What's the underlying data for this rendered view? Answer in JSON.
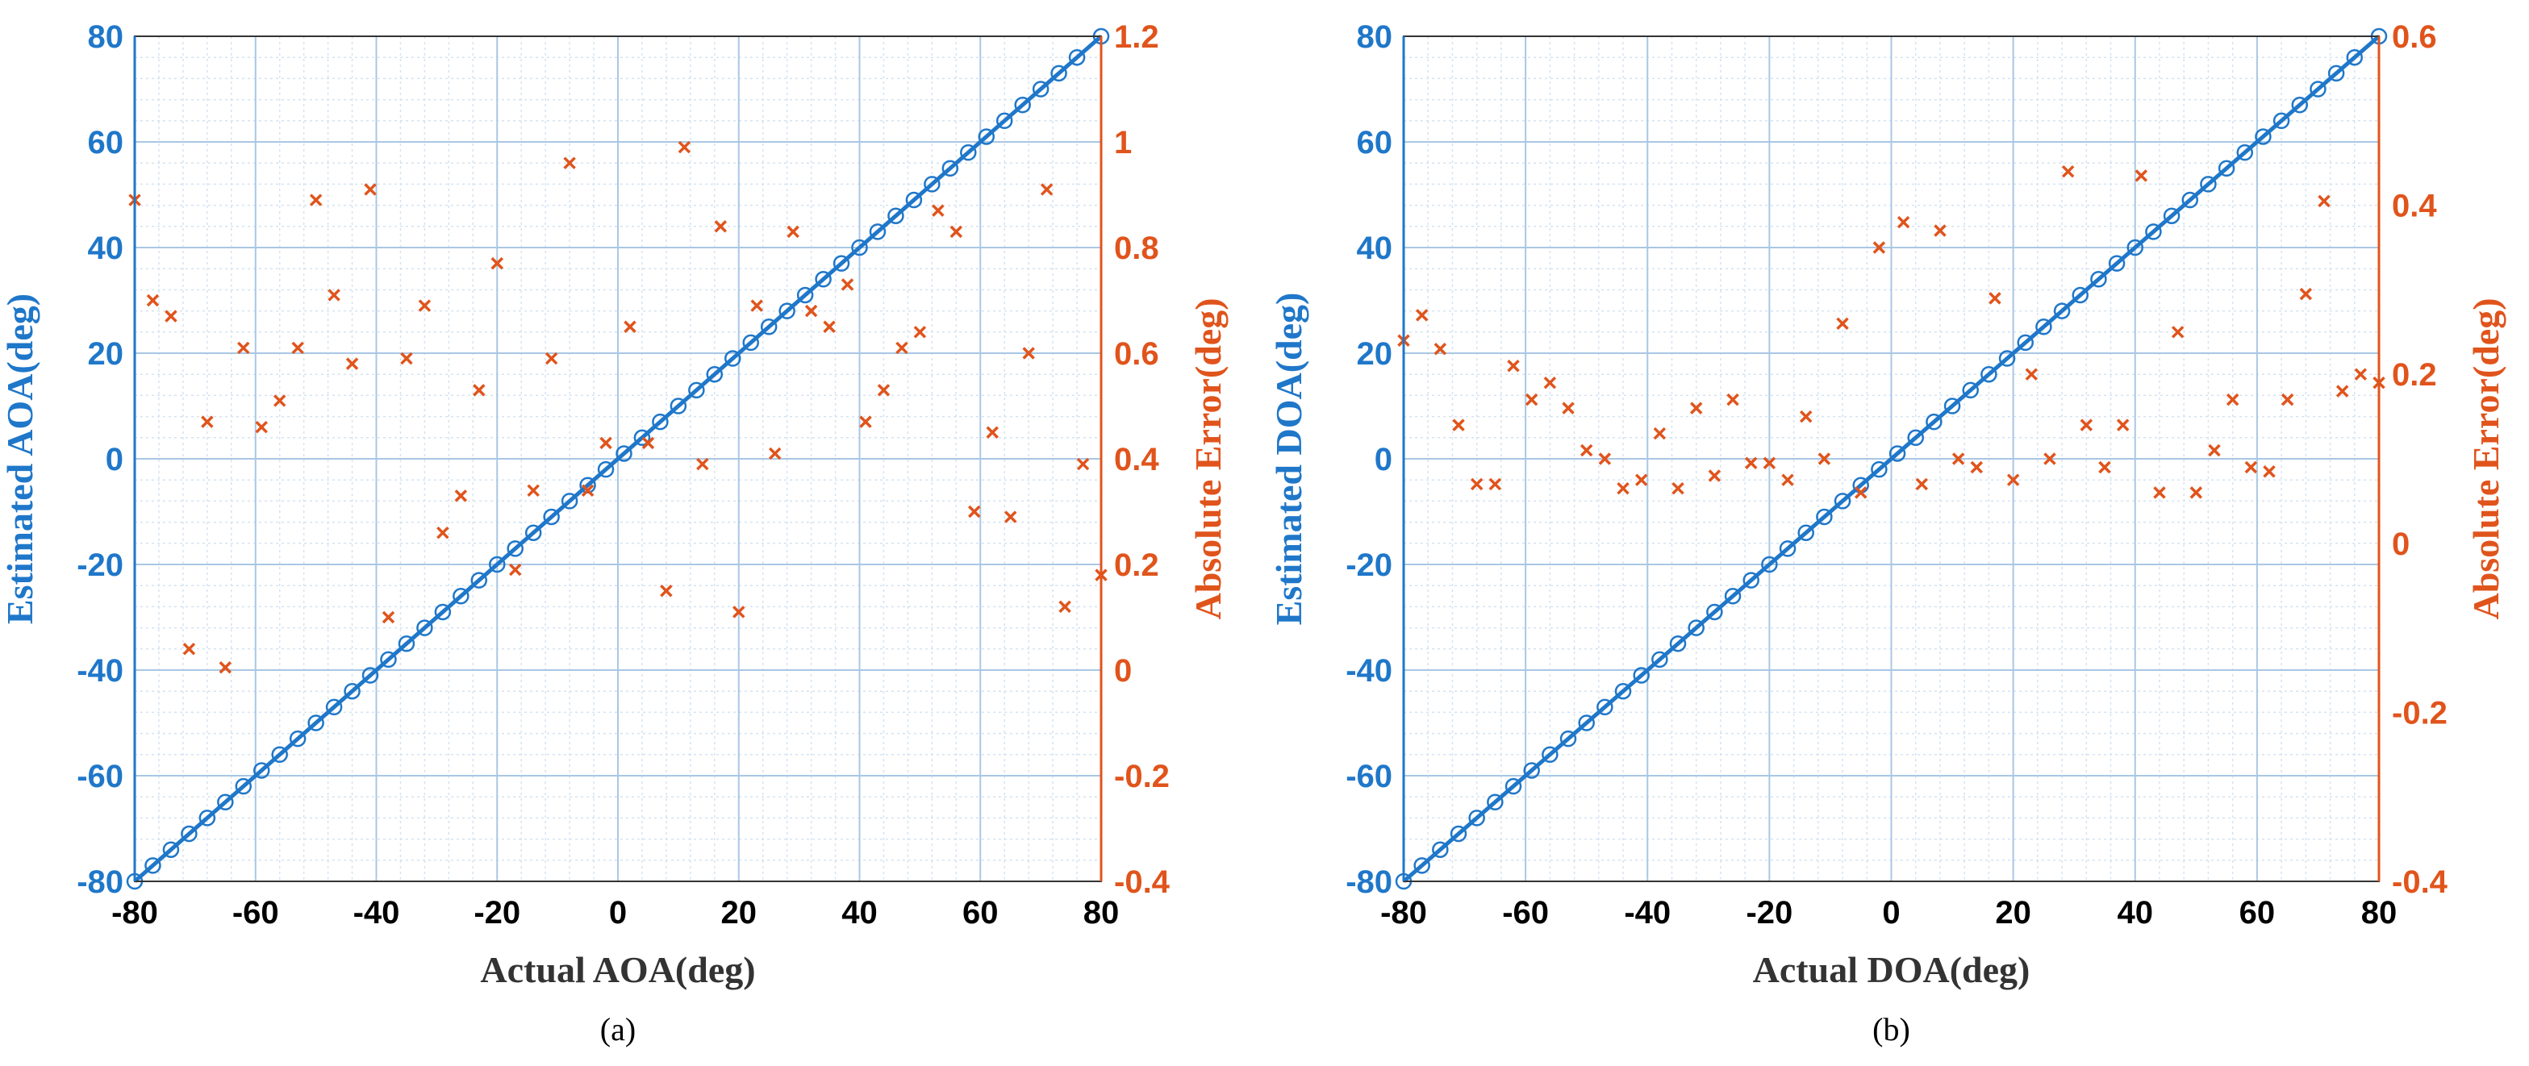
{
  "colors": {
    "left_axis": "#1f77c9",
    "right_axis": "#e0541c",
    "grid_major": "#a9c7e4",
    "grid_minor": "#d4e3f2",
    "axis_box": "#333333"
  },
  "chart_data": [
    {
      "type": "scatter",
      "caption": "(a)",
      "xlabel": "Actual AOA(deg)",
      "ylabel_left": "Estimated AOA(deg)",
      "ylabel_right": "Absolute Error(deg)",
      "xlim": [
        -80,
        80
      ],
      "ylim_left": [
        -80,
        80
      ],
      "ylim_right": [
        -0.4,
        1.2
      ],
      "x_ticks": [
        -80,
        -60,
        -40,
        -20,
        0,
        20,
        40,
        60,
        80
      ],
      "y_left_ticks": [
        -80,
        -60,
        -40,
        -20,
        0,
        20,
        40,
        60,
        80
      ],
      "y_right_ticks": [
        "-0.4",
        "-0.2",
        "0",
        "0.2",
        "0.4",
        "0.6",
        "0.8",
        "1",
        "1.2"
      ],
      "series": [
        {
          "name": "Estimated",
          "axis": "left",
          "marker": "circle",
          "line": "identity",
          "x": [
            -80,
            -77,
            -74,
            -71,
            -68,
            -65,
            -62,
            -59,
            -56,
            -53,
            -50,
            -47,
            -44,
            -41,
            -38,
            -35,
            -32,
            -29,
            -26,
            -23,
            -20,
            -17,
            -14,
            -11,
            -8,
            -5,
            -2,
            1,
            4,
            7,
            10,
            13,
            16,
            19,
            22,
            25,
            28,
            31,
            34,
            37,
            40,
            43,
            46,
            49,
            52,
            55,
            58,
            61,
            64,
            67,
            70,
            73,
            76,
            80
          ],
          "y": [
            -80,
            -77,
            -74,
            -71,
            -68,
            -65,
            -62,
            -59,
            -56,
            -53,
            -50,
            -47,
            -44,
            -41,
            -38,
            -35,
            -32,
            -29,
            -26,
            -23,
            -20,
            -17,
            -14,
            -11,
            -8,
            -5,
            -2,
            1,
            4,
            7,
            10,
            13,
            16,
            19,
            22,
            25,
            28,
            31,
            34,
            37,
            40,
            43,
            46,
            49,
            52,
            55,
            58,
            61,
            64,
            67,
            70,
            73,
            76,
            80
          ]
        },
        {
          "name": "Absolute Error",
          "axis": "right",
          "marker": "x",
          "x": [
            -80,
            -77,
            -74,
            -71,
            -68,
            -65,
            -62,
            -59,
            -56,
            -53,
            -50,
            -47,
            -44,
            -41,
            -38,
            -35,
            -32,
            -29,
            -26,
            -23,
            -20,
            -17,
            -14,
            -11,
            -8,
            -5,
            -2,
            2,
            5,
            8,
            11,
            14,
            17,
            20,
            23,
            26,
            29,
            32,
            35,
            38,
            41,
            44,
            47,
            50,
            53,
            56,
            59,
            62,
            65,
            68,
            71,
            74,
            77,
            80
          ],
          "y": [
            0.89,
            0.7,
            0.67,
            0.04,
            0.47,
            0.005,
            0.61,
            0.46,
            0.51,
            0.61,
            0.89,
            0.71,
            0.58,
            0.91,
            0.1,
            0.59,
            0.69,
            0.26,
            0.33,
            0.53,
            0.77,
            0.19,
            0.34,
            0.59,
            0.96,
            0.34,
            0.43,
            0.65,
            0.43,
            0.15,
            0.99,
            0.39,
            0.84,
            0.11,
            0.69,
            0.41,
            0.83,
            0.68,
            0.65,
            0.73,
            0.47,
            0.53,
            0.61,
            0.64,
            0.87,
            0.83,
            0.3,
            0.45,
            0.29,
            0.6,
            0.91,
            0.12,
            0.39,
            0.18
          ]
        }
      ]
    },
    {
      "type": "scatter",
      "caption": "(b)",
      "xlabel": "Actual DOA(deg)",
      "ylabel_left": "Estimated DOA(deg)",
      "ylabel_right": "Absolute Error(deg)",
      "xlim": [
        -80,
        80
      ],
      "ylim_left": [
        -80,
        80
      ],
      "ylim_right": [
        -0.4,
        0.6
      ],
      "x_ticks": [
        -80,
        -60,
        -40,
        -20,
        0,
        20,
        40,
        60,
        80
      ],
      "y_left_ticks": [
        -80,
        -60,
        -40,
        -20,
        0,
        20,
        40,
        60,
        80
      ],
      "y_right_ticks": [
        "-0.4",
        "-0.2",
        "0",
        "0.2",
        "0.4",
        "0.6"
      ],
      "series": [
        {
          "name": "Estimated",
          "axis": "left",
          "marker": "circle",
          "line": "identity",
          "x": [
            -80,
            -77,
            -74,
            -71,
            -68,
            -65,
            -62,
            -59,
            -56,
            -53,
            -50,
            -47,
            -44,
            -41,
            -38,
            -35,
            -32,
            -29,
            -26,
            -23,
            -20,
            -17,
            -14,
            -11,
            -8,
            -5,
            -2,
            1,
            4,
            7,
            10,
            13,
            16,
            19,
            22,
            25,
            28,
            31,
            34,
            37,
            40,
            43,
            46,
            49,
            52,
            55,
            58,
            61,
            64,
            67,
            70,
            73,
            76,
            80
          ],
          "y": [
            -80,
            -77,
            -74,
            -71,
            -68,
            -65,
            -62,
            -59,
            -56,
            -53,
            -50,
            -47,
            -44,
            -41,
            -38,
            -35,
            -32,
            -29,
            -26,
            -23,
            -20,
            -17,
            -14,
            -11,
            -8,
            -5,
            -2,
            1,
            4,
            7,
            10,
            13,
            16,
            19,
            22,
            25,
            28,
            31,
            34,
            37,
            40,
            43,
            46,
            49,
            52,
            55,
            58,
            61,
            64,
            67,
            70,
            73,
            76,
            80
          ]
        },
        {
          "name": "Absolute Error",
          "axis": "right",
          "marker": "x",
          "x": [
            -80,
            -77,
            -74,
            -71,
            -68,
            -65,
            -62,
            -59,
            -56,
            -53,
            -50,
            -47,
            -44,
            -41,
            -38,
            -35,
            -32,
            -29,
            -26,
            -23,
            -20,
            -17,
            -14,
            -11,
            -8,
            -5,
            -2,
            2,
            5,
            8,
            11,
            14,
            17,
            20,
            23,
            26,
            29,
            32,
            35,
            38,
            41,
            44,
            47,
            50,
            53,
            56,
            59,
            62,
            65,
            68,
            71,
            74,
            77,
            80
          ],
          "y": [
            0.24,
            0.27,
            0.23,
            0.14,
            0.07,
            0.07,
            0.21,
            0.17,
            0.19,
            0.16,
            0.11,
            0.1,
            0.065,
            0.075,
            0.13,
            0.065,
            0.16,
            0.08,
            0.17,
            0.095,
            0.095,
            0.075,
            0.15,
            0.1,
            0.26,
            0.06,
            0.35,
            0.38,
            0.07,
            0.37,
            0.1,
            0.09,
            0.29,
            0.075,
            0.2,
            0.1,
            0.44,
            0.14,
            0.09,
            0.14,
            0.435,
            0.06,
            0.25,
            0.06,
            0.11,
            0.17,
            0.09,
            0.085,
            0.17,
            0.295,
            0.405,
            0.18,
            0.2,
            0.19
          ]
        }
      ]
    }
  ]
}
